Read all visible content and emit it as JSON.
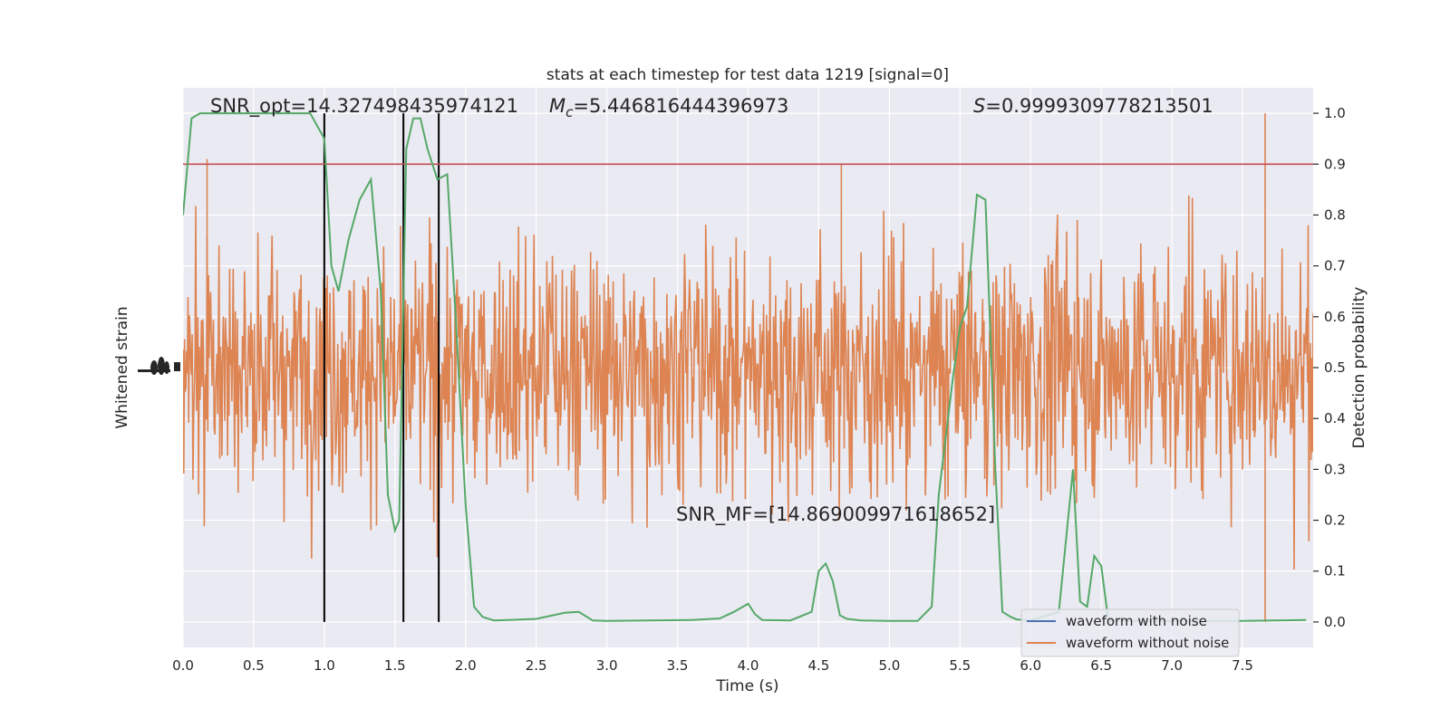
{
  "chart_data": {
    "type": "line",
    "title": "stats at each timestep for test data 1219 [signal=0]",
    "xlabel": "Time (s)",
    "ylabel_left": "Whitened strain",
    "ylabel_right": "Detection probability",
    "xlim": [
      0,
      8
    ],
    "ylim_right": [
      -0.05,
      1.05
    ],
    "x_ticks": [
      0.0,
      0.5,
      1.0,
      1.5,
      2.0,
      2.5,
      3.0,
      3.5,
      4.0,
      4.5,
      5.0,
      5.5,
      6.0,
      6.5,
      7.0,
      7.5
    ],
    "x_tick_labels": [
      "0.0",
      "0.5",
      "1.0",
      "1.5",
      "2.0",
      "2.5",
      "3.0",
      "3.5",
      "4.0",
      "4.5",
      "5.0",
      "5.5",
      "6.0",
      "6.5",
      "7.0",
      "7.5"
    ],
    "y_right_ticks": [
      0.0,
      0.1,
      0.2,
      0.3,
      0.4,
      0.5,
      0.6,
      0.7,
      0.8,
      0.9,
      1.0
    ],
    "y_right_tick_labels": [
      "0.0",
      "0.1",
      "0.2",
      "0.3",
      "0.4",
      "0.5",
      "0.6",
      "0.7",
      "0.8",
      "0.9",
      "1.0"
    ],
    "grid": true,
    "background": "#eaeaf2",
    "threshold": {
      "value": 0.9,
      "color": "#c44e52"
    },
    "vertical_lines": [
      1.0,
      1.56,
      1.81
    ],
    "annotations": {
      "snr_opt": "SNR_opt=14.327498435974121",
      "mc_symbol": "M",
      "mc_subscript": "c",
      "mc_value": "=5.446816444396973",
      "s_symbol": "S",
      "s_value": "=0.9999309778213501",
      "snr_mf": "SNR_MF=[14.869009971618652]"
    },
    "series": [
      {
        "name": "waveform with noise",
        "color": "#4c72b0"
      },
      {
        "name": "waveform without noise",
        "color": "#dd8452"
      }
    ],
    "detection_probability": {
      "color": "#55a868",
      "x": [
        0.0,
        0.06,
        0.12,
        0.25,
        0.4,
        0.55,
        0.7,
        0.8,
        0.9,
        1.0,
        1.05,
        1.1,
        1.17,
        1.25,
        1.33,
        1.4,
        1.45,
        1.5,
        1.53,
        1.58,
        1.63,
        1.68,
        1.73,
        1.8,
        1.87,
        1.93,
        2.0,
        2.06,
        2.12,
        2.2,
        2.3,
        2.5,
        2.7,
        2.8,
        2.9,
        3.0,
        3.3,
        3.6,
        3.8,
        3.9,
        4.0,
        4.05,
        4.1,
        4.3,
        4.45,
        4.5,
        4.55,
        4.6,
        4.65,
        4.7,
        4.8,
        5.0,
        5.2,
        5.3,
        5.35,
        5.45,
        5.5,
        5.55,
        5.62,
        5.68,
        5.75,
        5.8,
        5.86,
        5.9,
        6.0,
        6.2,
        6.3,
        6.35,
        6.4,
        6.45,
        6.5,
        6.55,
        6.6,
        6.7,
        7.0,
        7.5,
        7.95
      ],
      "y": [
        0.8,
        0.99,
        1.0,
        1.0,
        1.0,
        1.0,
        1.0,
        1.0,
        1.0,
        0.95,
        0.7,
        0.65,
        0.75,
        0.83,
        0.87,
        0.65,
        0.25,
        0.18,
        0.2,
        0.93,
        0.99,
        0.99,
        0.93,
        0.87,
        0.88,
        0.6,
        0.23,
        0.03,
        0.01,
        0.003,
        0.004,
        0.006,
        0.018,
        0.02,
        0.003,
        0.002,
        0.003,
        0.004,
        0.007,
        0.02,
        0.036,
        0.015,
        0.004,
        0.003,
        0.02,
        0.1,
        0.115,
        0.08,
        0.013,
        0.006,
        0.003,
        0.002,
        0.002,
        0.03,
        0.25,
        0.48,
        0.58,
        0.62,
        0.84,
        0.83,
        0.3,
        0.02,
        0.01,
        0.005,
        0.003,
        0.02,
        0.3,
        0.04,
        0.03,
        0.13,
        0.11,
        0.003,
        0.002,
        0.002,
        0.002,
        0.002,
        0.004
      ]
    }
  }
}
